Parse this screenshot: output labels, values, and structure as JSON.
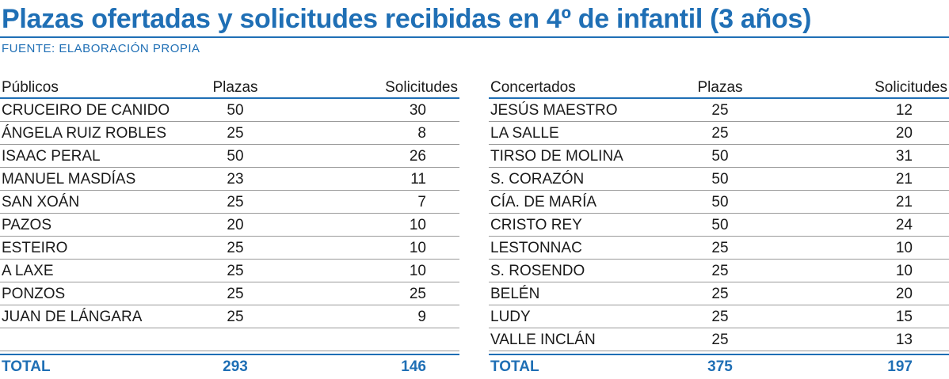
{
  "title": "Plazas ofertadas y solicitudes recibidas en 4º de infantil (3 años)",
  "source": "FUENTE: ELABORACIÓN PROPIA",
  "chart_data": [
    {
      "type": "table",
      "columns": [
        "Públicos",
        "Plazas",
        "Solicitudes"
      ],
      "rows": [
        {
          "name": "CRUCEIRO DE CANIDO",
          "plazas": "50",
          "solicitudes": "30"
        },
        {
          "name": "ÁNGELA RUIZ ROBLES",
          "plazas": "25",
          "solicitudes": "8"
        },
        {
          "name": "ISAAC PERAL",
          "plazas": "50",
          "solicitudes": "26"
        },
        {
          "name": "MANUEL MASDÍAS",
          "plazas": "23",
          "solicitudes": "11"
        },
        {
          "name": "SAN XOÁN",
          "plazas": "25",
          "solicitudes": "7"
        },
        {
          "name": "PAZOS",
          "plazas": "20",
          "solicitudes": "10"
        },
        {
          "name": "ESTEIRO",
          "plazas": "25",
          "solicitudes": "10"
        },
        {
          "name": "A LAXE",
          "plazas": "25",
          "solicitudes": "10"
        },
        {
          "name": "PONZOS",
          "plazas": "25",
          "solicitudes": "25"
        },
        {
          "name": "JUAN DE LÁNGARA",
          "plazas": "25",
          "solicitudes": "9"
        }
      ],
      "total": {
        "label": "TOTAL",
        "plazas": "293",
        "solicitudes": "146"
      }
    },
    {
      "type": "table",
      "columns": [
        "Concertados",
        "Plazas",
        "Solicitudes"
      ],
      "rows": [
        {
          "name": "JESÚS MAESTRO",
          "plazas": "25",
          "solicitudes": "12"
        },
        {
          "name": "LA SALLE",
          "plazas": "25",
          "solicitudes": "20"
        },
        {
          "name": "TIRSO DE MOLINA",
          "plazas": "50",
          "solicitudes": "31"
        },
        {
          "name": "S. CORAZÓN",
          "plazas": "50",
          "solicitudes": "21"
        },
        {
          "name": "CÍA. DE MARÍA",
          "plazas": "50",
          "solicitudes": "21"
        },
        {
          "name": "CRISTO REY",
          "plazas": "50",
          "solicitudes": "24"
        },
        {
          "name": "LESTONNAC",
          "plazas": "25",
          "solicitudes": "10"
        },
        {
          "name": "S. ROSENDO",
          "plazas": "25",
          "solicitudes": "10"
        },
        {
          "name": "BELÉN",
          "plazas": "25",
          "solicitudes": "20"
        },
        {
          "name": "LUDY",
          "plazas": "25",
          "solicitudes": "15"
        },
        {
          "name": "VALLE INCLÁN",
          "plazas": "25",
          "solicitudes": "13"
        }
      ],
      "total": {
        "label": "TOTAL",
        "plazas": "375",
        "solicitudes": "197"
      }
    }
  ]
}
